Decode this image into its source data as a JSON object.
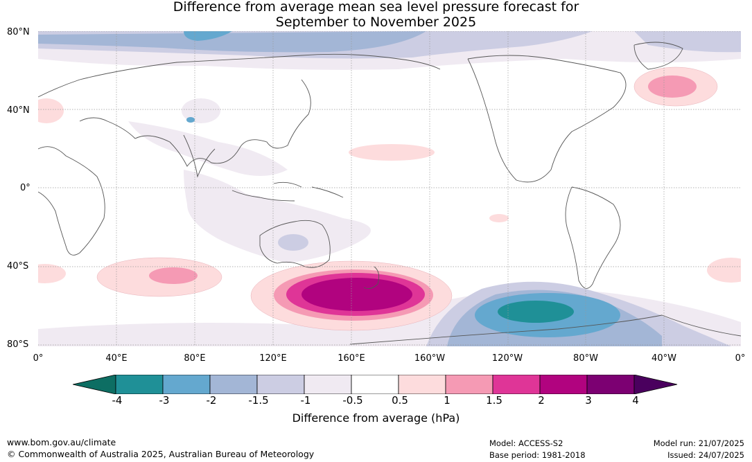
{
  "title": {
    "line1": "Difference from average mean sea level pressure forecast for",
    "line2": "September to November 2025"
  },
  "axes": {
    "lat_labels": [
      "80°N",
      "40°N",
      "0°",
      "40°S",
      "80°S"
    ],
    "lon_labels": [
      "0°",
      "40°E",
      "80°E",
      "120°E",
      "160°E",
      "160°W",
      "120°W",
      "80°W",
      "40°W",
      "0°"
    ]
  },
  "colorbar": {
    "label": "Difference from average (hPa)",
    "ticks": [
      "-4",
      "-3",
      "-2",
      "-1.5",
      "-1",
      "-0.5",
      "0.5",
      "1",
      "1.5",
      "2",
      "3",
      "4"
    ],
    "colors": [
      "#0d6e63",
      "#1f9097",
      "#64a8cf",
      "#a3b6d6",
      "#cccde3",
      "#f0eaf2",
      "#ffffff",
      "#fddcdd",
      "#f59ab4",
      "#df3597",
      "#b1037f",
      "#7c0072",
      "#4a005e"
    ]
  },
  "footer": {
    "website": "www.bom.gov.au/climate",
    "copyright": "© Commonwealth of Australia 2025, Australian Bureau of Meteorology",
    "model": "Model: ACCESS-S2",
    "base_period": "Base period: 1981-2018",
    "model_run": "Model run: 21/07/2025",
    "issued": "Issued: 24/07/2025"
  }
}
